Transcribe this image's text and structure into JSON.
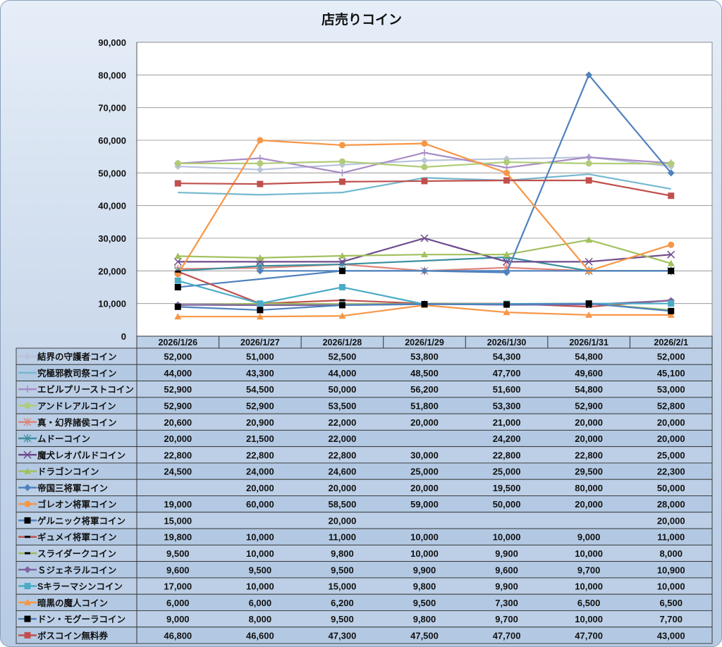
{
  "chart_data": {
    "type": "line",
    "title": "店売りコイン",
    "xlabel": "",
    "ylabel": "",
    "ylim": [
      0,
      90000
    ],
    "yticks": [
      "0",
      "10,000",
      "20,000",
      "30,000",
      "40,000",
      "50,000",
      "60,000",
      "70,000",
      "80,000",
      "90,000"
    ],
    "grid": true,
    "legend": "data-table",
    "categories": [
      "2026/1/26",
      "2026/1/27",
      "2026/1/28",
      "2026/1/29",
      "2026/1/30",
      "2026/1/31",
      "2026/2/1"
    ],
    "series": [
      {
        "name": "結界の守護者コイン",
        "color": "#b9c4dc",
        "marker": "diamond",
        "values": [
          52000,
          51000,
          52500,
          53800,
          54300,
          54800,
          52000
        ]
      },
      {
        "name": "究極邪教司祭コイン",
        "color": "#74b8cf",
        "marker": "none",
        "values": [
          44000,
          43300,
          44000,
          48500,
          47700,
          49600,
          45100
        ]
      },
      {
        "name": "エビルプリーストコイン",
        "color": "#a88cc4",
        "marker": "plus",
        "values": [
          52900,
          54500,
          50000,
          56200,
          51600,
          54800,
          53000
        ]
      },
      {
        "name": "アンドレアルコイン",
        "color": "#b0cc78",
        "marker": "circle",
        "values": [
          52900,
          52900,
          53500,
          51800,
          53300,
          52900,
          52800
        ]
      },
      {
        "name": "真・幻界諸侯コイン",
        "color": "#e0847a",
        "marker": "asterisk",
        "values": [
          20600,
          20900,
          22000,
          20000,
          21000,
          20000,
          20000
        ]
      },
      {
        "name": "ムドーコイン",
        "color": "#3b8f9f",
        "marker": "asterisk",
        "values": [
          20000,
          21500,
          22000,
          null,
          24200,
          20000,
          20000
        ]
      },
      {
        "name": "魔犬レオパルドコイン",
        "color": "#6e4b8c",
        "marker": "x",
        "values": [
          22800,
          22800,
          22800,
          30000,
          22800,
          22800,
          25000
        ]
      },
      {
        "name": "ドラゴンコイン",
        "color": "#a2c05e",
        "marker": "triangle",
        "values": [
          24500,
          24000,
          24600,
          25000,
          25000,
          29500,
          22300
        ]
      },
      {
        "name": "帝国三将軍コイン",
        "color": "#4f81bd",
        "marker": "diamond",
        "values": [
          null,
          20000,
          20000,
          20000,
          19500,
          80000,
          50000
        ]
      },
      {
        "name": "ゴレオン将軍コイン",
        "color": "#f79646",
        "marker": "circle",
        "values": [
          19000,
          60000,
          58500,
          59000,
          50000,
          20000,
          28000
        ]
      },
      {
        "name": "ゲルニック将軍コイン",
        "color": "#4f81bd",
        "marker": "blacksquare",
        "values": [
          15000,
          null,
          20000,
          null,
          null,
          null,
          20000
        ]
      },
      {
        "name": "ギュメイ将軍コイン",
        "color": "#c0504d",
        "marker": "blackdash",
        "values": [
          19800,
          10000,
          11000,
          10000,
          10000,
          9000,
          11000
        ]
      },
      {
        "name": "スライダークコイン",
        "color": "#9bbb59",
        "marker": "blackdash",
        "values": [
          9500,
          10000,
          9800,
          10000,
          9900,
          10000,
          8000
        ]
      },
      {
        "name": "Ｓジェネラルコイン",
        "color": "#8064a2",
        "marker": "diamond",
        "values": [
          9600,
          9500,
          9500,
          9900,
          9600,
          9700,
          10900
        ]
      },
      {
        "name": "Sキラーマシンコイン",
        "color": "#4bacc6",
        "marker": "square",
        "values": [
          17000,
          10000,
          15000,
          9800,
          9900,
          10000,
          10000
        ]
      },
      {
        "name": "暗黒の魔人コイン",
        "color": "#f79646",
        "marker": "triangle",
        "values": [
          6000,
          6000,
          6200,
          9500,
          7300,
          6500,
          6500
        ]
      },
      {
        "name": "ドン・モグーラコイン",
        "color": "#4f81bd",
        "marker": "blacksquare",
        "values": [
          9000,
          8000,
          9500,
          9800,
          9700,
          10000,
          7700
        ]
      },
      {
        "name": "ボスコイン無料券",
        "color": "#c0504d",
        "marker": "square",
        "values": [
          46800,
          46600,
          47300,
          47500,
          47700,
          47700,
          43000
        ]
      }
    ]
  }
}
